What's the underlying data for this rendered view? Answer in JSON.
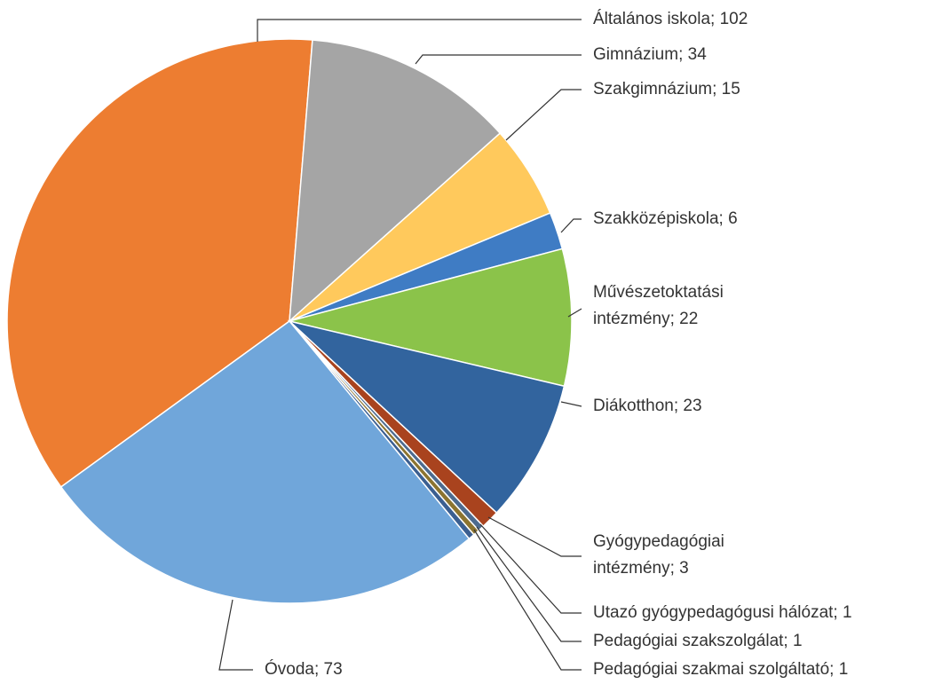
{
  "chart_data": {
    "type": "pie",
    "labels": [
      [
        "Általános iskola; 102"
      ],
      [
        "Gimnázium; 34"
      ],
      [
        "Szakgimnázium; 15"
      ],
      [
        "Szakközépiskola; 6"
      ],
      [
        "Művészetoktatási",
        "intézmény; 22"
      ],
      [
        "Diákotthon; 23"
      ],
      [
        "Gyógypedagógiai",
        "intézmény; 3"
      ],
      [
        "Utazó gyógypedagógusi hálózat; 1"
      ],
      [
        "Pedagógiai szakszolgálat; 1"
      ],
      [
        "Pedagógiai szakmai szolgáltató; 1"
      ],
      [
        "Óvoda; 73"
      ]
    ],
    "values": [
      102,
      34,
      15,
      6,
      22,
      23,
      3,
      1,
      1,
      1,
      73
    ],
    "colors": [
      "#ed7d31",
      "#a5a5a5",
      "#ffc95c",
      "#3f7cc4",
      "#8bc34a",
      "#32649e",
      "#a9431e",
      "#4d6b8f",
      "#8c7430",
      "#3b5f91",
      "#70a6da"
    ]
  }
}
